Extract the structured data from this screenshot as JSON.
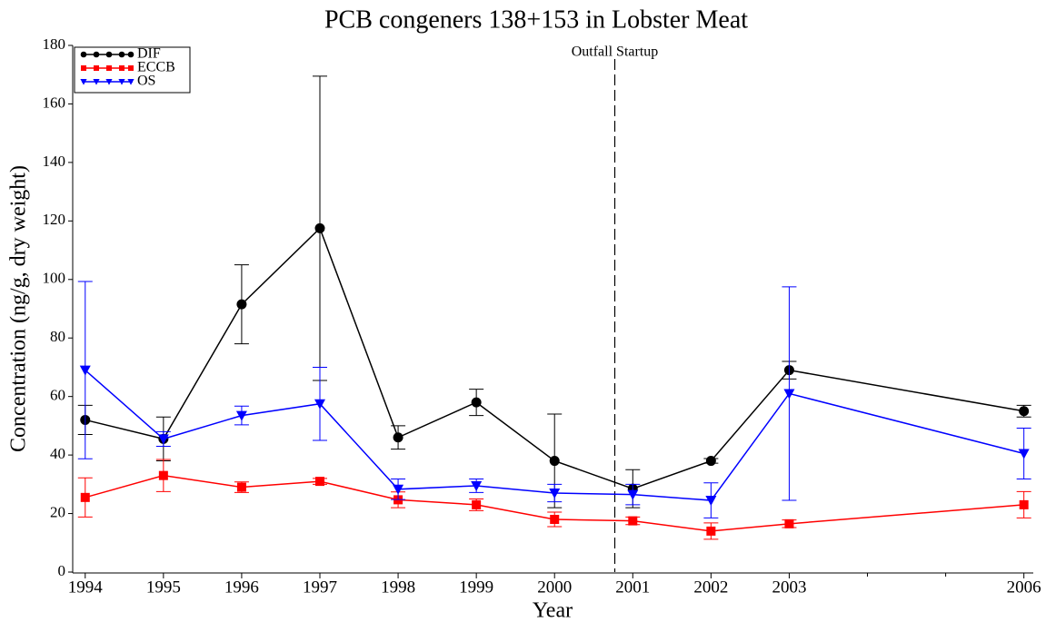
{
  "chart_data": {
    "type": "line",
    "title": "PCB congeners 138+153 in Lobster Meat",
    "x_label": "Year",
    "y_label": "Concentration (ng/g, dry weight)",
    "x": [
      1994,
      1995,
      1996,
      1997,
      1998,
      1999,
      2000,
      2001,
      2002,
      2003,
      2006
    ],
    "series": [
      {
        "name": "DIF",
        "color": "#000000",
        "marker": "circle",
        "values": [
          52,
          45.5,
          91.5,
          117.5,
          46,
          58,
          38,
          28.5,
          38,
          69,
          55
        ],
        "errors": [
          5,
          7.5,
          13.5,
          52,
          4,
          4.5,
          16,
          6.5,
          0.8,
          3,
          2
        ]
      },
      {
        "name": "ECCB",
        "color": "#ff0000",
        "marker": "square",
        "values": [
          25.5,
          33,
          29,
          31,
          24.7,
          23,
          18,
          17.5,
          14,
          16.5,
          23
        ],
        "errors": [
          6.7,
          5.5,
          1.8,
          1,
          2.7,
          2,
          2.5,
          1.3,
          2.8,
          1.3,
          4.5
        ]
      },
      {
        "name": "OS",
        "color": "#0000ff",
        "marker": "triangle-down",
        "values": [
          69,
          45.5,
          53.5,
          57.5,
          28.3,
          29.5,
          27,
          26.5,
          24.5,
          61,
          40.5
        ],
        "errors": [
          30.3,
          2.5,
          3.2,
          12.5,
          3.5,
          2.3,
          3,
          3.5,
          6,
          36.5,
          8.7
        ]
      }
    ],
    "annotations": [
      {
        "text": "Outfall Startup",
        "x": 2000.77
      }
    ],
    "xlim": [
      1993.84,
      2006.12
    ],
    "xticks": [
      1994,
      1995,
      1996,
      1997,
      1998,
      1999,
      2000,
      2001,
      2002,
      2003,
      2006
    ],
    "xminorticks": [
      2004,
      2005
    ],
    "ylim": [
      0,
      180
    ],
    "yticks": [
      0,
      20,
      40,
      60,
      80,
      100,
      120,
      140,
      160,
      180
    ],
    "legend": "upper-left",
    "grid": false
  }
}
